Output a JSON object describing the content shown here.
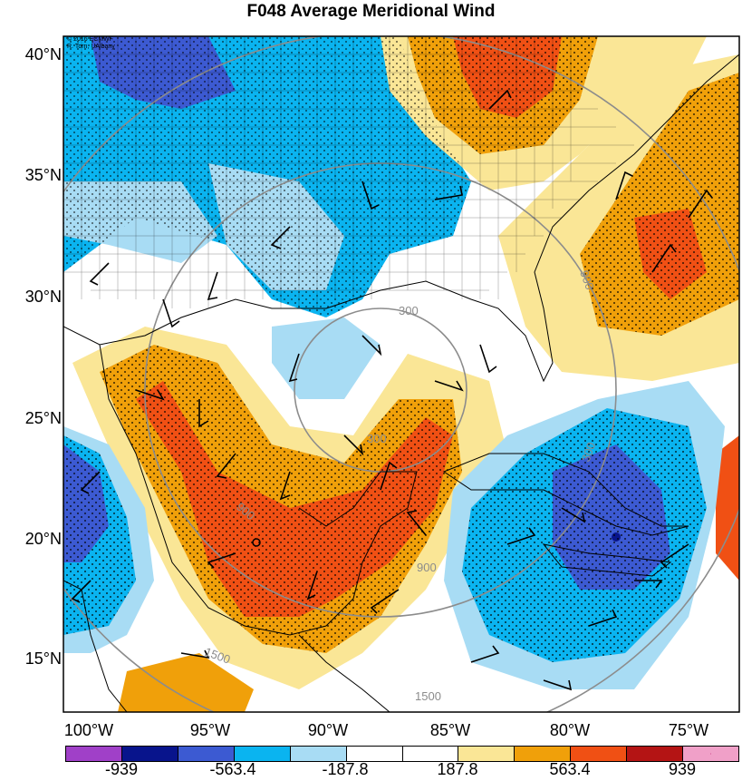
{
  "title": "F048 Average Meridional Wind",
  "credit": [
    "© 2016 ECMWF",
    "R. Torn, UAlbany"
  ],
  "lat_labels": [
    "40°N",
    "35°N",
    "30°N",
    "25°N",
    "20°N",
    "15°N"
  ],
  "lon_labels": [
    "100°W",
    "95°W",
    "90°W",
    "85°W",
    "80°W",
    "75°W"
  ],
  "contour_labels": [
    "300",
    "300",
    "900",
    "900",
    "1500",
    "1500",
    "900",
    "300"
  ],
  "colorbar": {
    "labels": [
      "-939",
      "-563.4",
      "-187.8",
      "187.8",
      "563.4",
      "939"
    ],
    "colors": [
      "#a040c8",
      "#08148c",
      "#3c5ad2",
      "#0ab4f0",
      "#a8dcf4",
      "#ffffff",
      "#ffffff",
      "#fae696",
      "#f0a00a",
      "#f05014",
      "#b41414",
      "#f0a0c8"
    ]
  },
  "palette": {
    "land_outline": "#000000",
    "range_ring": "#8c8c8c",
    "stipple": "#000000"
  },
  "storm_center_marker": "circle-icon"
}
